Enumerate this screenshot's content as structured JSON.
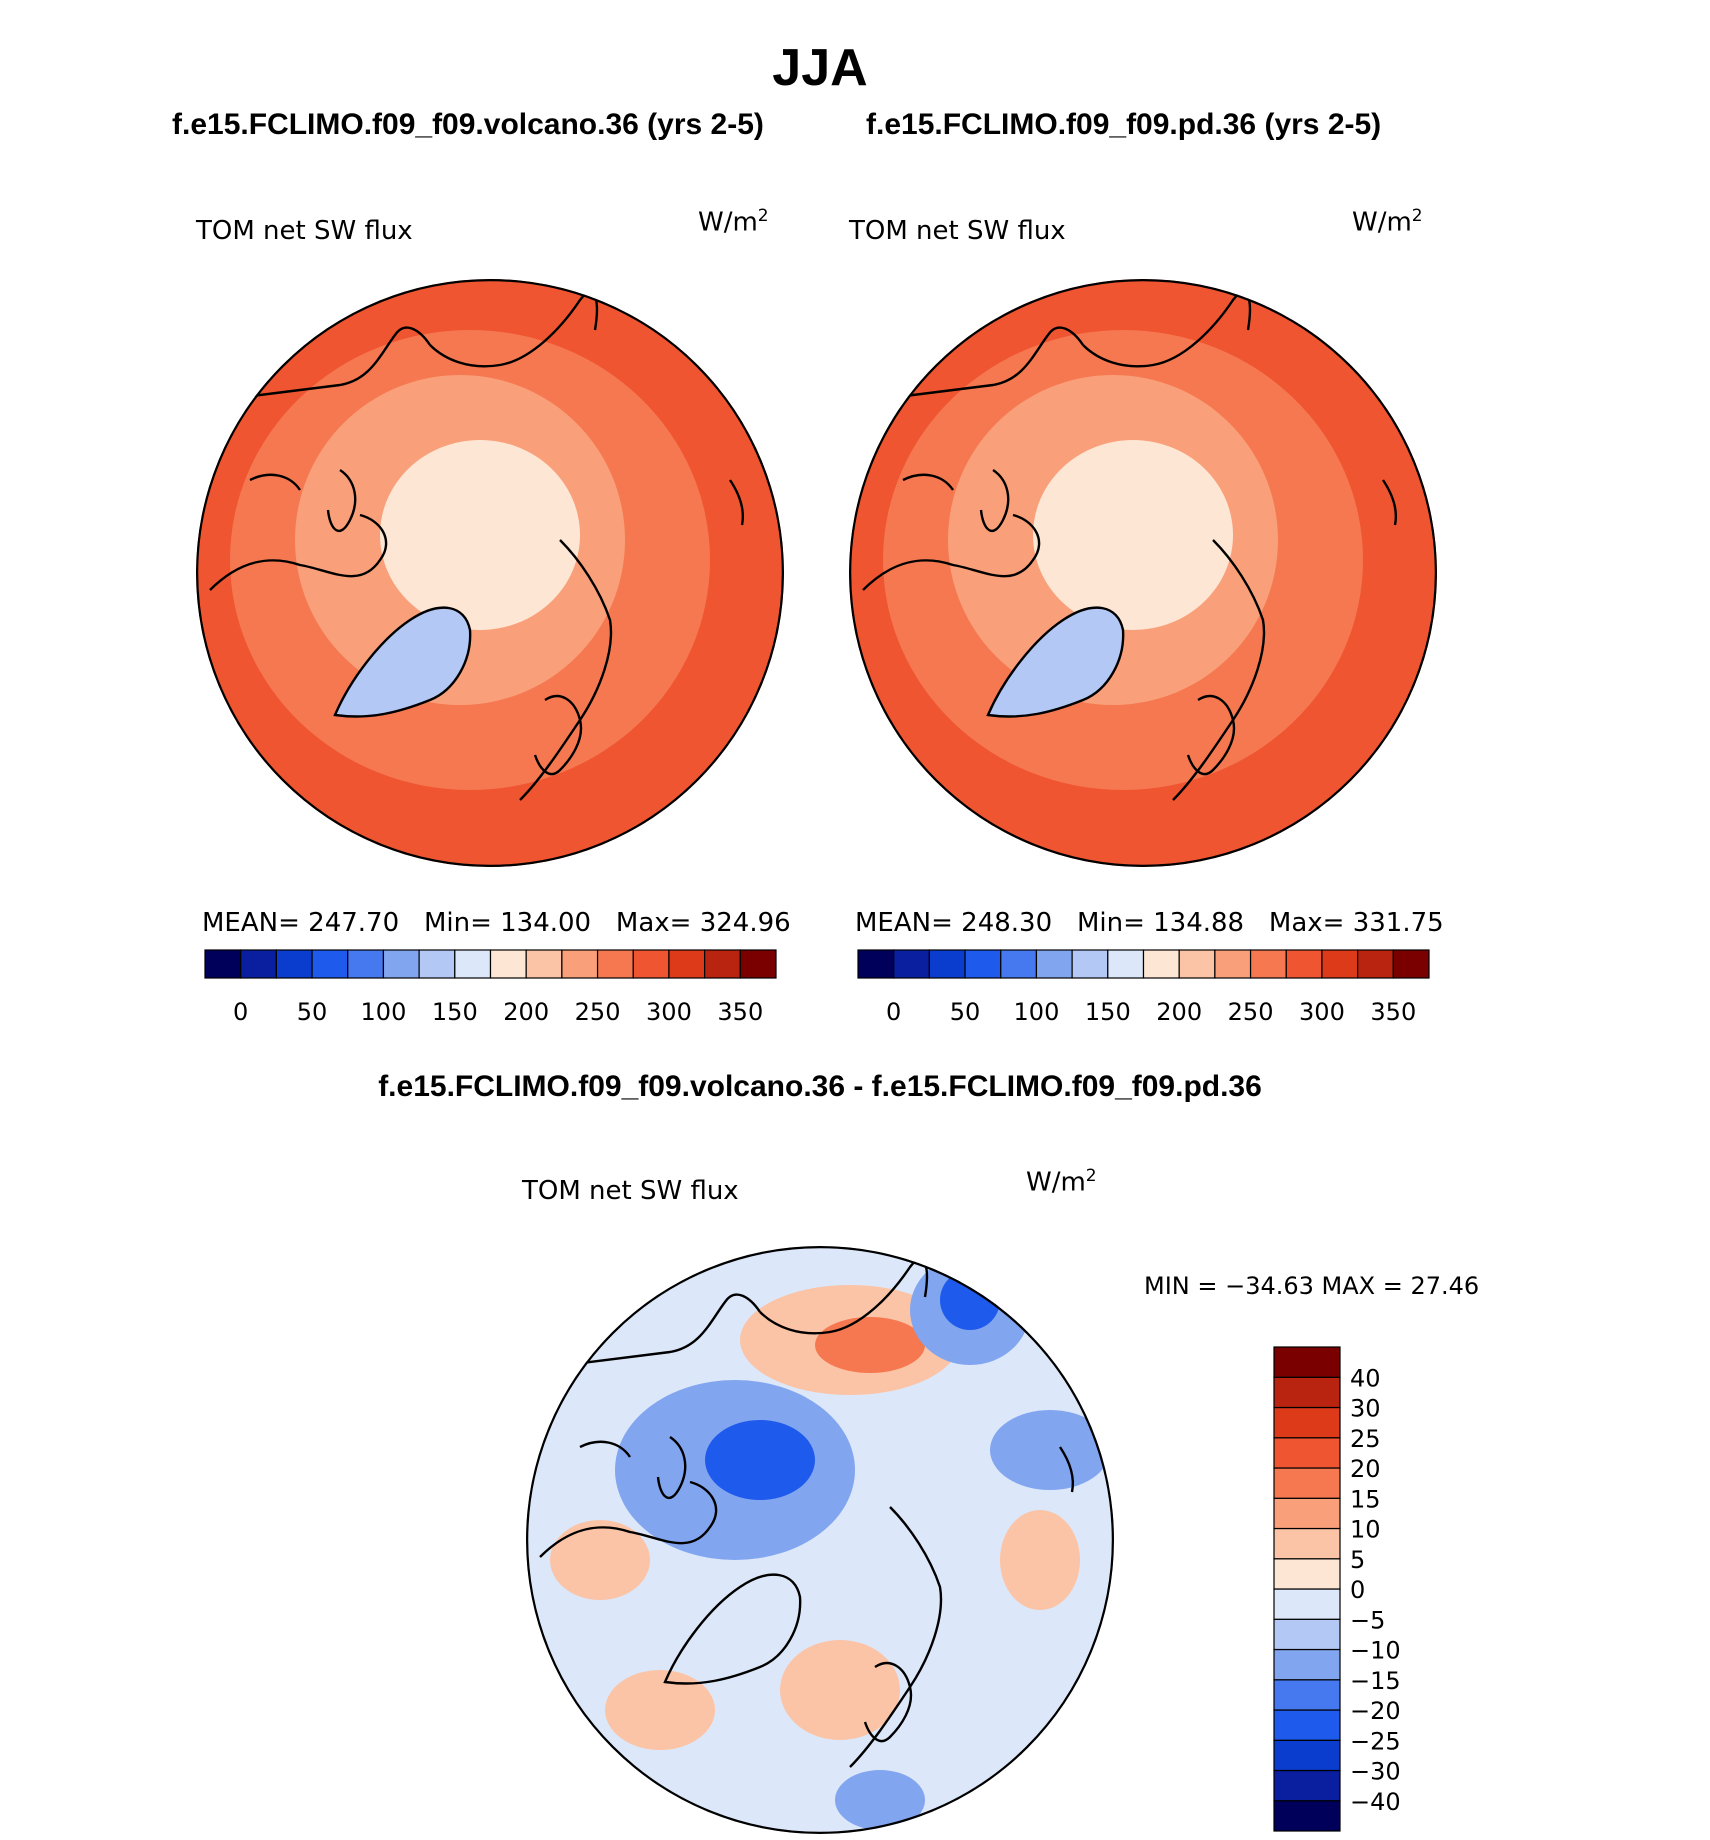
{
  "title": "JJA",
  "panels": [
    {
      "case_title": "f.e15.FCLIMO.f09_f09.volcano.36 (yrs 2-5)",
      "variable": "TOM net SW flux",
      "units": "W/m",
      "units_exp": "2",
      "stats": {
        "mean_label": "MEAN=",
        "mean": "247.70",
        "min_label": "Min=",
        "min": "134.00",
        "max_label": "Max=",
        "max": "324.96"
      }
    },
    {
      "case_title": "f.e15.FCLIMO.f09_f09.pd.36 (yrs 2-5)",
      "variable": "TOM net SW flux",
      "units": "W/m",
      "units_exp": "2",
      "stats": {
        "mean_label": "MEAN=",
        "mean": "248.30",
        "min_label": "Min=",
        "min": "134.88",
        "max_label": "Max=",
        "max": "331.75"
      }
    }
  ],
  "diff_panel": {
    "title": "f.e15.FCLIMO.f09_f09.volcano.36 - f.e15.FCLIMO.f09_f09.pd.36",
    "variable": "TOM net SW flux",
    "units": "W/m",
    "units_exp": "2",
    "minmax_text": "MIN = −34.63 MAX =   27.46"
  },
  "colorbar_top": {
    "colors": [
      "#00005a",
      "#0a1ea0",
      "#0a3ccd",
      "#1e5aeb",
      "#4678f0",
      "#82a5f0",
      "#b4c8f5",
      "#dce8fa",
      "#fde6d4",
      "#fbc4a6",
      "#f9a07a",
      "#f57850",
      "#ef5530",
      "#dd3a1a",
      "#b82410",
      "#7a0000"
    ],
    "labels": [
      "0",
      "50",
      "100",
      "150",
      "200",
      "250",
      "300",
      "350"
    ]
  },
  "colorbar_diff": {
    "colors_bottom_to_top": [
      "#00005a",
      "#0a1ea0",
      "#0a3ccd",
      "#1e5aeb",
      "#4678f0",
      "#82a5f0",
      "#b4c8f5",
      "#dce8fa",
      "#fde6d4",
      "#fbc4a6",
      "#f9a07a",
      "#f57850",
      "#ef5530",
      "#dd3a1a",
      "#b82410",
      "#7a0000"
    ],
    "labels_top_to_bottom": [
      "40",
      "30",
      "25",
      "20",
      "15",
      "10",
      "5",
      "0",
      "−5",
      "−10",
      "−15",
      "−20",
      "−25",
      "−30",
      "−40"
    ]
  },
  "map_colors": {
    "field_outer": "#ef5530",
    "field_mid": "#f57850",
    "field_inner": "#f9a07a",
    "field_pole": "#fde6d4",
    "greenland": "#b4c8f5",
    "diff_base": "#dce8fa",
    "diff_pos": "#fbc4a6",
    "diff_pos_strong": "#f57850",
    "diff_neg": "#82a5f0",
    "diff_neg_strong": "#1e5aeb"
  }
}
